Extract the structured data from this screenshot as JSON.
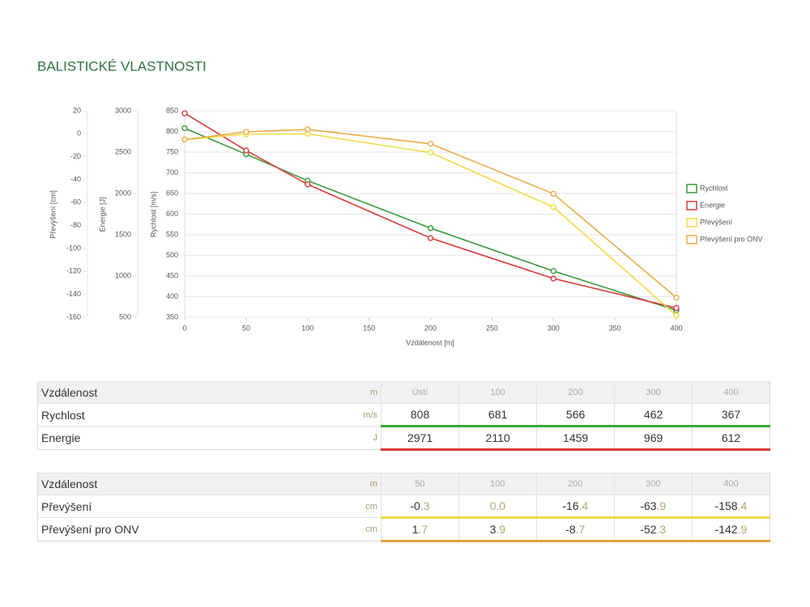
{
  "header": {
    "title": "BALISTICKÉ VLASTNOSTI"
  },
  "chart_data": {
    "type": "line",
    "x": [
      0,
      50,
      100,
      200,
      300,
      400
    ],
    "xlim": [
      0,
      400
    ],
    "xticks": [
      0,
      50,
      100,
      150,
      200,
      250,
      300,
      350,
      400
    ],
    "xlabel": "Vzdálenost [m]",
    "ylabel": "Rychlost [m/s]",
    "ylim": [
      350,
      850
    ],
    "yticks": [
      350,
      400,
      450,
      500,
      550,
      600,
      650,
      700,
      750,
      800,
      850
    ],
    "y2label": "Energie [J]",
    "y2lim": [
      500,
      3000
    ],
    "y2ticks": [
      500,
      1000,
      1500,
      2000,
      2500,
      3000
    ],
    "y3label": "Převýšení [cm]",
    "y3lim": [
      -160,
      20
    ],
    "y3ticks": [
      20,
      0,
      -20,
      -40,
      -60,
      -80,
      -100,
      -120,
      -140,
      -160
    ],
    "grid": true,
    "legend": "right",
    "series": [
      {
        "name": "Rychlost",
        "color": "#3a9a3a",
        "axis": "y",
        "values": [
          808,
          745,
          681,
          566,
          462,
          367
        ]
      },
      {
        "name": "Energie",
        "color": "#d93a3a",
        "axis": "y2",
        "values": [
          2971,
          2520,
          2110,
          1459,
          969,
          612
        ]
      },
      {
        "name": "Převýšení",
        "color": "#f0dc46",
        "axis": "y3",
        "values": [
          -5,
          -0.3,
          0.0,
          -16.4,
          -63.9,
          -158.4
        ]
      },
      {
        "name": "Převýšení pro ONV",
        "color": "#e8ad48",
        "axis": "y3",
        "values": [
          -5,
          1.7,
          3.9,
          -8.7,
          -52.3,
          -142.9
        ]
      }
    ]
  },
  "tables": [
    {
      "columns": [
        "Vzdálenost",
        "m",
        "Ústí",
        "100",
        "200",
        "300",
        "400"
      ],
      "rows": [
        {
          "label": "Rychlost",
          "unit": "m/s",
          "color": "#3aaa3a",
          "cells": [
            "808",
            "681",
            "566",
            "462",
            "367"
          ]
        },
        {
          "label": "Energie",
          "unit": "J",
          "color": "#d93a3a",
          "cells": [
            "2971",
            "2110",
            "1459",
            "969",
            "612"
          ]
        }
      ]
    },
    {
      "columns": [
        "Vzdálenost",
        "m",
        "50",
        "100",
        "200",
        "300",
        "400"
      ],
      "rows": [
        {
          "label": "Převýšení",
          "unit": "cm",
          "color": "#f0dc46",
          "cells": [
            "-0.3",
            "0.0",
            "-16.4",
            "-63.9",
            "-158.4"
          ]
        },
        {
          "label": "Převýšení pro ONV",
          "unit": "cm",
          "color": "#e8a440",
          "cells": [
            "1.7",
            "3.9",
            "-8.7",
            "-52.3",
            "-142.9"
          ]
        }
      ]
    }
  ]
}
